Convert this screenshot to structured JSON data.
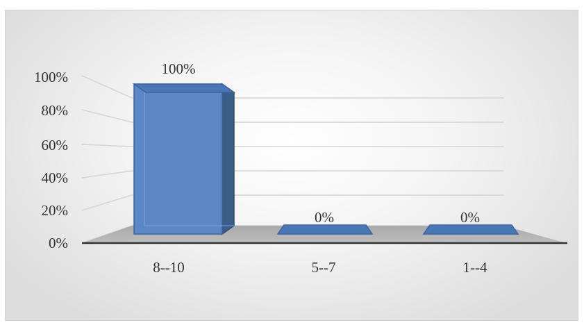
{
  "chart_data": {
    "type": "bar",
    "three_d": true,
    "categories": [
      "8--10",
      "5--7",
      "1--4"
    ],
    "values": [
      100,
      0,
      0
    ],
    "data_labels": [
      "100%",
      "0%",
      "0%"
    ],
    "yticks": [
      "0%",
      "20%",
      "40%",
      "60%",
      "80%",
      "100%"
    ],
    "ylim": [
      0,
      100
    ],
    "grid": true,
    "legend": "none",
    "bar_color": "#4f81bd",
    "title": "",
    "xlabel": "",
    "ylabel": ""
  }
}
